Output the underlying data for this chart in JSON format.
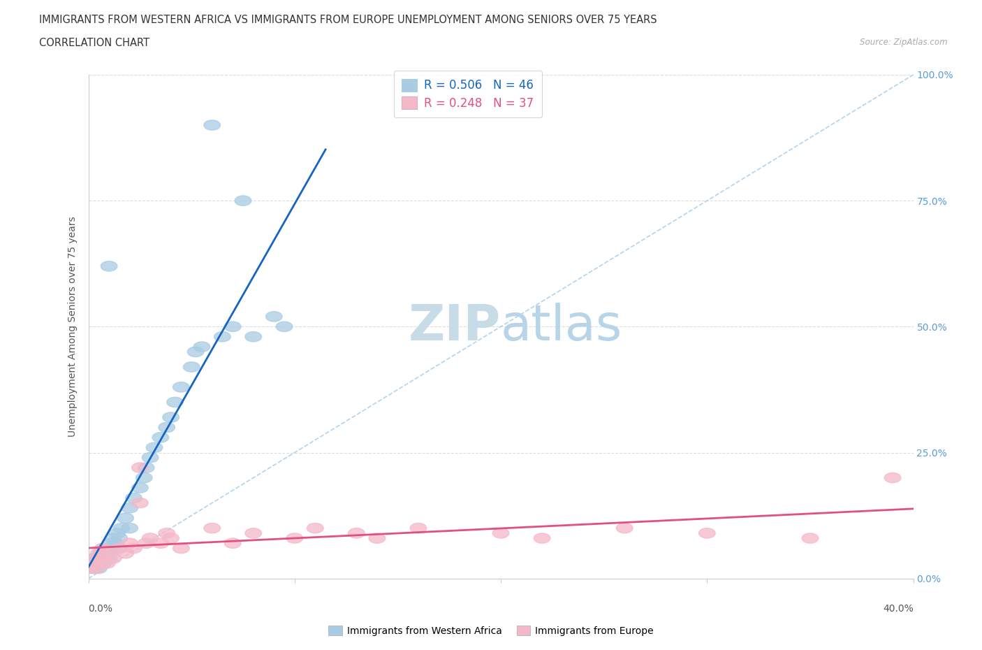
{
  "title_line1": "IMMIGRANTS FROM WESTERN AFRICA VS IMMIGRANTS FROM EUROPE UNEMPLOYMENT AMONG SENIORS OVER 75 YEARS",
  "title_line2": "CORRELATION CHART",
  "source_text": "Source: ZipAtlas.com",
  "ylabel": "Unemployment Among Seniors over 75 years",
  "xlim": [
    0.0,
    0.4
  ],
  "ylim": [
    0.0,
    1.0
  ],
  "yticks": [
    0.0,
    0.25,
    0.5,
    0.75,
    1.0
  ],
  "ytick_labels": [
    "0.0%",
    "25.0%",
    "50.0%",
    "75.0%",
    "100.0%"
  ],
  "legend_R_blue": "R = 0.506",
  "legend_N_blue": "N = 46",
  "legend_R_pink": "R = 0.248",
  "legend_N_pink": "N = 37",
  "series_blue_label": "Immigrants from Western Africa",
  "series_pink_label": "Immigrants from Europe",
  "color_blue": "#a8cce4",
  "color_pink": "#f4b8c8",
  "color_blue_line": "#1565c0",
  "color_pink_line": "#e05080",
  "color_diag": "#9ec8e8",
  "watermark_color": "#d8eef8",
  "background_color": "#ffffff",
  "grid_color": "#dddddd",
  "blue_x": [
    0.001,
    0.002,
    0.003,
    0.003,
    0.004,
    0.005,
    0.005,
    0.006,
    0.007,
    0.008,
    0.008,
    0.009,
    0.01,
    0.01,
    0.011,
    0.012,
    0.013,
    0.014,
    0.015,
    0.015,
    0.016,
    0.018,
    0.02,
    0.02,
    0.022,
    0.025,
    0.027,
    0.028,
    0.03,
    0.032,
    0.035,
    0.038,
    0.04,
    0.042,
    0.045,
    0.05,
    0.052,
    0.055,
    0.06,
    0.065,
    0.07,
    0.075,
    0.08,
    0.09,
    0.095,
    0.01
  ],
  "blue_y": [
    0.03,
    0.02,
    0.04,
    0.02,
    0.03,
    0.04,
    0.02,
    0.05,
    0.03,
    0.06,
    0.04,
    0.05,
    0.06,
    0.04,
    0.07,
    0.08,
    0.07,
    0.09,
    0.08,
    0.06,
    0.1,
    0.12,
    0.14,
    0.1,
    0.16,
    0.18,
    0.2,
    0.22,
    0.24,
    0.26,
    0.28,
    0.3,
    0.32,
    0.35,
    0.38,
    0.42,
    0.45,
    0.46,
    0.9,
    0.48,
    0.5,
    0.75,
    0.48,
    0.52,
    0.5,
    0.62
  ],
  "pink_x": [
    0.001,
    0.002,
    0.003,
    0.004,
    0.005,
    0.006,
    0.007,
    0.008,
    0.009,
    0.01,
    0.012,
    0.015,
    0.018,
    0.02,
    0.022,
    0.025,
    0.028,
    0.03,
    0.035,
    0.038,
    0.04,
    0.045,
    0.06,
    0.07,
    0.08,
    0.1,
    0.11,
    0.13,
    0.14,
    0.16,
    0.2,
    0.22,
    0.26,
    0.3,
    0.35,
    0.39,
    0.025
  ],
  "pink_y": [
    0.02,
    0.03,
    0.04,
    0.02,
    0.05,
    0.03,
    0.06,
    0.04,
    0.03,
    0.05,
    0.04,
    0.06,
    0.05,
    0.07,
    0.06,
    0.22,
    0.07,
    0.08,
    0.07,
    0.09,
    0.08,
    0.06,
    0.1,
    0.07,
    0.09,
    0.08,
    0.1,
    0.09,
    0.08,
    0.1,
    0.09,
    0.08,
    0.1,
    0.09,
    0.08,
    0.2,
    0.15
  ],
  "blue_trend_x_end": 0.115,
  "pink_trend_x_end": 0.4
}
